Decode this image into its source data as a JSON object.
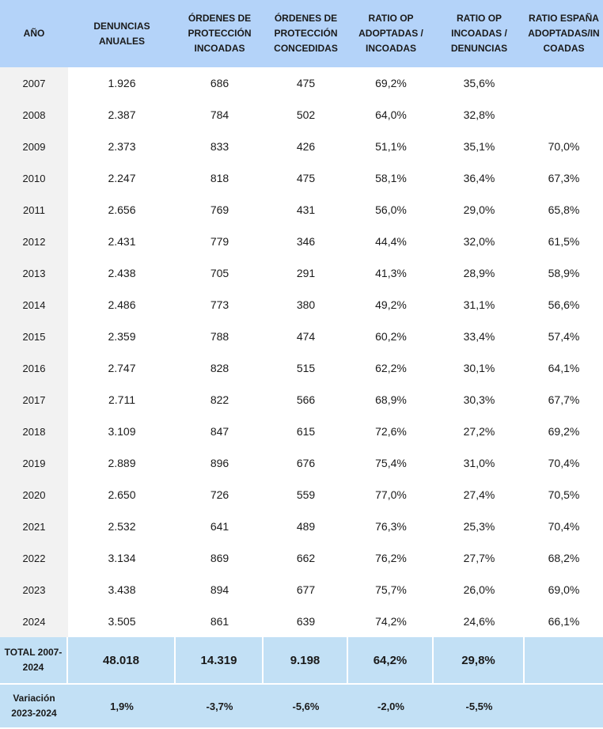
{
  "headers": [
    "AÑO",
    "DENUNCIAS ANUALES",
    "ÓRDENES DE PROTECCIÓN INCOADAS",
    "ÓRDENES DE PROTECCIÓN CONCEDIDAS",
    "RATIO OP ADOPTADAS / INCOADAS",
    "RATIO OP INCOADAS / DENUNCIAS",
    "RATIO ESPAÑA ADOPTADAS/INCOADAS"
  ],
  "rows": [
    [
      "2007",
      "1.926",
      "686",
      "475",
      "69,2%",
      "35,6%",
      ""
    ],
    [
      "2008",
      "2.387",
      "784",
      "502",
      "64,0%",
      "32,8%",
      ""
    ],
    [
      "2009",
      "2.373",
      "833",
      "426",
      "51,1%",
      "35,1%",
      "70,0%"
    ],
    [
      "2010",
      "2.247",
      "818",
      "475",
      "58,1%",
      "36,4%",
      "67,3%"
    ],
    [
      "2011",
      "2.656",
      "769",
      "431",
      "56,0%",
      "29,0%",
      "65,8%"
    ],
    [
      "2012",
      "2.431",
      "779",
      "346",
      "44,4%",
      "32,0%",
      "61,5%"
    ],
    [
      "2013",
      "2.438",
      "705",
      "291",
      "41,3%",
      "28,9%",
      "58,9%"
    ],
    [
      "2014",
      "2.486",
      "773",
      "380",
      "49,2%",
      "31,1%",
      "56,6%"
    ],
    [
      "2015",
      "2.359",
      "788",
      "474",
      "60,2%",
      "33,4%",
      "57,4%"
    ],
    [
      "2016",
      "2.747",
      "828",
      "515",
      "62,2%",
      "30,1%",
      "64,1%"
    ],
    [
      "2017",
      "2.711",
      "822",
      "566",
      "68,9%",
      "30,3%",
      "67,7%"
    ],
    [
      "2018",
      "3.109",
      "847",
      "615",
      "72,6%",
      "27,2%",
      "69,2%"
    ],
    [
      "2019",
      "2.889",
      "896",
      "676",
      "75,4%",
      "31,0%",
      "70,4%"
    ],
    [
      "2020",
      "2.650",
      "726",
      "559",
      "77,0%",
      "27,4%",
      "70,5%"
    ],
    [
      "2021",
      "2.532",
      "641",
      "489",
      "76,3%",
      "25,3%",
      "70,4%"
    ],
    [
      "2022",
      "3.134",
      "869",
      "662",
      "76,2%",
      "27,7%",
      "68,2%"
    ],
    [
      "2023",
      "3.438",
      "894",
      "677",
      "75,7%",
      "26,0%",
      "69,0%"
    ],
    [
      "2024",
      "3.505",
      "861",
      "639",
      "74,2%",
      "24,6%",
      "66,1%"
    ]
  ],
  "total": [
    "TOTAL 2007-2024",
    "48.018",
    "14.319",
    "9.198",
    "64,2%",
    "29,8%",
    ""
  ],
  "variation": [
    "Variación 2023-2024",
    "1,9%",
    "-3,7%",
    "-5,6%",
    "-2,0%",
    "-5,5%",
    ""
  ],
  "colors": {
    "header_bg": "#b4d3f9",
    "summary_bg": "#c2e0f5",
    "year_bg": "#f2f2f2"
  }
}
